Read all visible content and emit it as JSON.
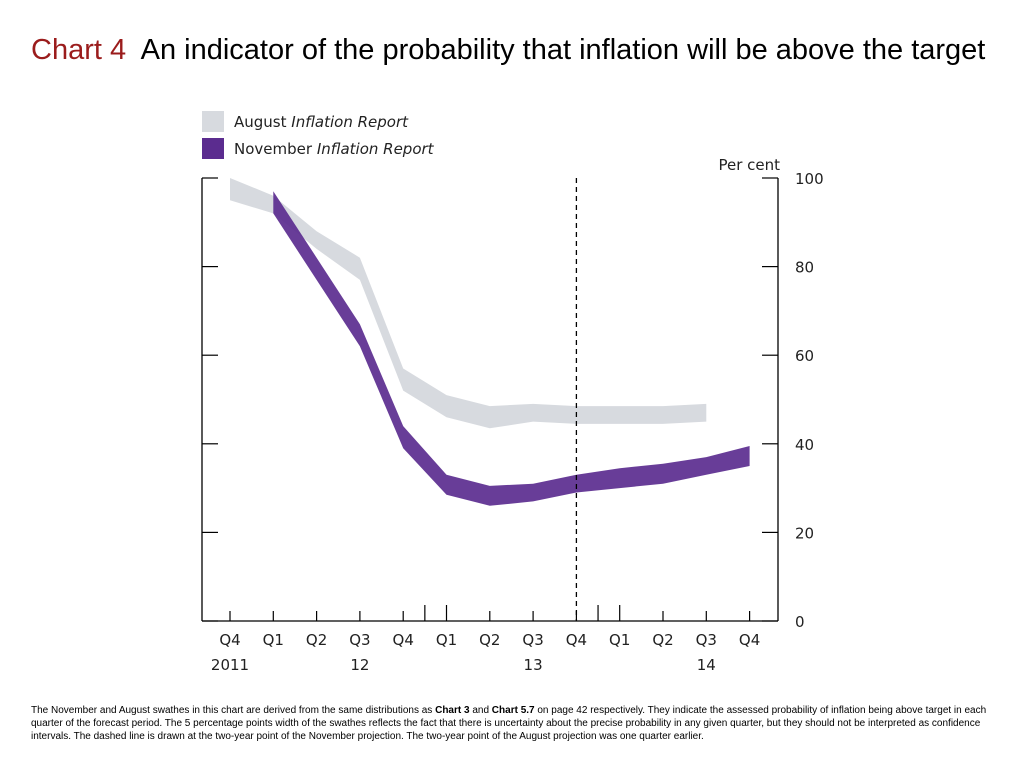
{
  "title": {
    "chart_label": "Chart 4",
    "text": "An indicator of the probability that inflation will be above the target"
  },
  "colors": {
    "august": "#d7dadf",
    "november": "#5b2c8f",
    "title_accent": "#9b1c1c"
  },
  "legend": [
    {
      "name": "August",
      "name_italic": "Inflation Report",
      "color": "#d7dadf"
    },
    {
      "name": "November",
      "name_italic": "Inflation Report",
      "color": "#5b2c8f"
    }
  ],
  "footnote": {
    "part1": "The November and August swathes in this chart are derived from the same distributions as ",
    "ref1": "Chart 3",
    "part2": " and ",
    "ref2": "Chart 5.7",
    "part3": " on page 42 respectively.  They indicate the assessed probability of inflation being above target in each quarter of the forecast period.  The 5 percentage points width of the swathes reflects the fact that there is uncertainty about the precise probability in any given quarter, but they should not be interpreted as confidence intervals.  The dashed line is drawn at the two-year point of the November projection.  The two-year point of the August projection was one quarter earlier."
  },
  "chart_data": {
    "type": "area",
    "ylabel": "Per cent",
    "ylim": [
      0,
      100
    ],
    "yticks": [
      0,
      20,
      40,
      60,
      80,
      100
    ],
    "grid": false,
    "legend_position": "top-left",
    "categories": [
      "Q4",
      "Q1",
      "Q2",
      "Q3",
      "Q4",
      "Q1",
      "Q2",
      "Q3",
      "Q4",
      "Q1",
      "Q2",
      "Q3",
      "Q4"
    ],
    "year_labels": [
      {
        "index": 0,
        "label": "2011"
      },
      {
        "index": 3,
        "label": "12"
      },
      {
        "index": 7,
        "label": "13"
      },
      {
        "index": 11,
        "label": "14"
      }
    ],
    "dashed_line_index": 8,
    "series": [
      {
        "name": "August Inflation Report",
        "color": "#d7dadf",
        "upper": [
          100,
          96,
          88,
          82,
          57,
          51,
          48.5,
          49,
          48.5,
          48.5,
          48.5,
          49
        ],
        "lower": [
          95,
          92,
          84,
          77,
          52,
          46,
          43.5,
          45,
          44.5,
          44.5,
          44.5,
          45
        ]
      },
      {
        "name": "November Inflation Report",
        "color": "#5b2c8f",
        "upper": [
          null,
          97,
          82,
          67,
          44,
          33,
          30.5,
          31,
          33,
          34.5,
          35.5,
          37,
          39.5
        ],
        "lower": [
          null,
          92,
          77,
          62,
          39,
          28.5,
          26,
          27,
          29,
          30,
          31,
          33,
          35
        ]
      }
    ]
  }
}
